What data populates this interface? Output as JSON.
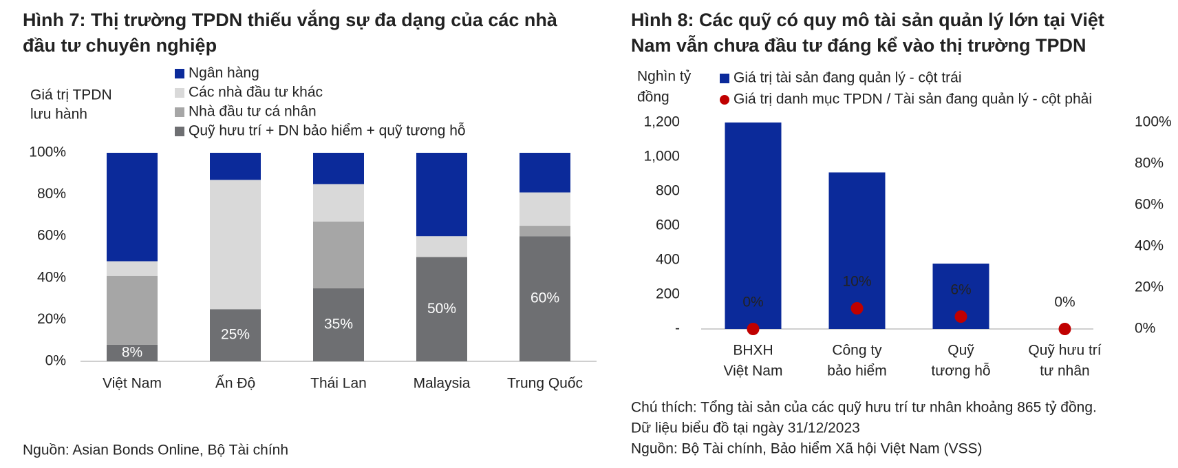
{
  "chart_data": [
    {
      "type": "bar",
      "stacked": true,
      "title": [
        "Hình 7: Thị trường TPDN thiếu vắng sự đa dạng của các nhà",
        "đầu tư chuyên nghiệp"
      ],
      "y_label": [
        "Giá trị TPDN",
        "lưu hành"
      ],
      "categories": [
        "Việt Nam",
        "Ấn Độ",
        "Thái Lan",
        "Malaysia",
        "Trung Quốc"
      ],
      "series": [
        {
          "name": "Ngân hàng",
          "color": "#0b2a9a",
          "values": [
            52,
            13,
            15,
            40,
            19
          ]
        },
        {
          "name": "Các nhà đầu tư khác",
          "color": "#d9d9d9",
          "values": [
            7,
            62,
            18,
            10,
            16
          ]
        },
        {
          "name": "Nhà đầu tư cá nhân",
          "color": "#a6a6a6",
          "values": [
            33,
            0,
            32,
            0,
            5
          ]
        },
        {
          "name": "Quỹ hưu trí + DN bảo hiểm + quỹ tương hỗ",
          "color": "#6e6f72",
          "values": [
            8,
            25,
            35,
            50,
            60
          ],
          "value_labels": [
            "8%",
            "25%",
            "35%",
            "50%",
            "60%"
          ]
        }
      ],
      "ylim": [
        0,
        100
      ],
      "yticks": [
        {
          "value": 0,
          "label": "0%"
        },
        {
          "value": 20,
          "label": "20%"
        },
        {
          "value": 40,
          "label": "40%"
        },
        {
          "value": 60,
          "label": "60%"
        },
        {
          "value": 80,
          "label": "80%"
        },
        {
          "value": 100,
          "label": "100%"
        }
      ],
      "source": "Nguồn: Asian Bonds Online, Bộ Tài chính"
    },
    {
      "type": "bar",
      "title": [
        "Hình 8: Các quỹ có quy mô tài sản quản lý lớn tại Việt",
        "Nam vẫn chưa đầu tư đáng kể vào thị trường TPDN"
      ],
      "y_label": [
        "Nghìn tỷ",
        "đồng"
      ],
      "categories": [
        [
          "BHXH",
          "Việt Nam"
        ],
        [
          "Công ty",
          "bảo hiểm"
        ],
        [
          "Quỹ",
          "tương hỗ"
        ],
        [
          "Quỹ hưu trí",
          "tư nhân"
        ]
      ],
      "series": [
        {
          "name": "Giá trị tài sản đang quản lý - cột trái",
          "type": "bar",
          "color": "#0b2a9a",
          "values": [
            1200,
            910,
            380,
            null
          ]
        },
        {
          "name": "Giá trị danh mục TPDN / Tài sản đang quản lý - cột phải",
          "type": "scatter",
          "axis": "y2",
          "color": "#c00000",
          "values": [
            0,
            10,
            6,
            0
          ],
          "value_labels": [
            "0%",
            "10%",
            "6%",
            "0%"
          ]
        }
      ],
      "ylim": [
        0,
        1200
      ],
      "yticks": [
        {
          "value": 0,
          "label": "-"
        },
        200,
        400,
        600,
        800,
        {
          "value": 1000,
          "label": "1,000"
        },
        {
          "value": 1200,
          "label": "1,200"
        }
      ],
      "y2lim": [
        0,
        100
      ],
      "y2ticks": [
        {
          "value": 0,
          "label": "0%"
        },
        {
          "value": 20,
          "label": "20%"
        },
        {
          "value": 40,
          "label": "40%"
        },
        {
          "value": 60,
          "label": "60%"
        },
        {
          "value": 80,
          "label": "80%"
        },
        {
          "value": 100,
          "label": "100%"
        }
      ],
      "notes": [
        "Chú thích: Tổng tài sản của các quỹ hưu trí tư nhân khoảng 865 tỷ đồng.",
        "Dữ liệu biểu đồ tại ngày 31/12/2023",
        "Nguồn: Bộ Tài chính, Bảo hiểm Xã hội Việt Nam (VSS)"
      ]
    }
  ]
}
